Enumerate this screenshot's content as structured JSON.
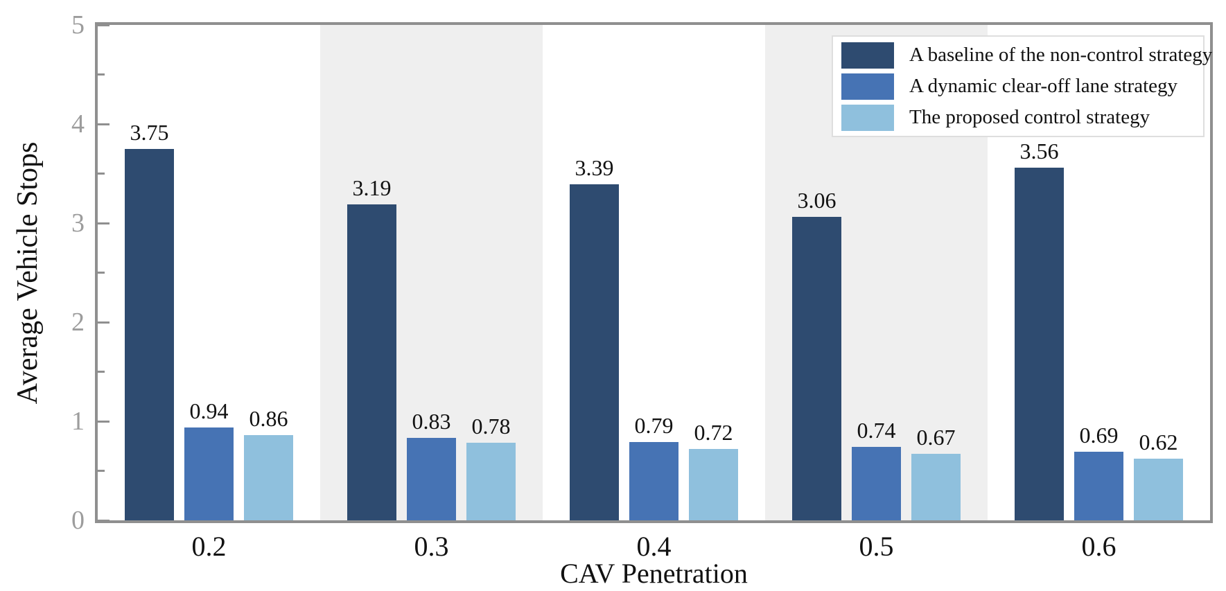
{
  "chart_data": {
    "type": "bar",
    "title": "",
    "xlabel": "CAV Penetration",
    "ylabel": "Average Vehicle Stops",
    "categories": [
      "0.2",
      "0.3",
      "0.4",
      "0.5",
      "0.6"
    ],
    "series": [
      {
        "name": "A baseline of the non-control strategy",
        "color": "#2e4b70",
        "values": [
          3.75,
          3.19,
          3.39,
          3.06,
          3.56
        ],
        "value_labels": [
          "3.75",
          "3.19",
          "3.39",
          "3.06",
          "3.56"
        ]
      },
      {
        "name": "A dynamic clear-off lane strategy",
        "color": "#4673b4",
        "values": [
          0.94,
          0.83,
          0.79,
          0.74,
          0.69
        ],
        "value_labels": [
          "0.94",
          "0.83",
          "0.79",
          "0.74",
          "0.69"
        ]
      },
      {
        "name": "The proposed control strategy",
        "color": "#8fc0dd",
        "values": [
          0.86,
          0.78,
          0.72,
          0.67,
          0.62
        ],
        "value_labels": [
          "0.86",
          "0.78",
          "0.72",
          "0.67",
          "0.62"
        ]
      }
    ],
    "ylim": [
      0,
      5
    ],
    "yticks": [
      0,
      1,
      2,
      3,
      4,
      5
    ],
    "ytick_labels": [
      "0",
      "1",
      "2",
      "3",
      "4",
      "5"
    ],
    "minor_yticks": [
      0.5,
      1.5,
      2.5,
      3.5,
      4.5
    ],
    "banded_category_indices": [
      1,
      3
    ],
    "band_color": "#efefef",
    "axis_color": "#8f8f8f",
    "ytick_label_color": "#9c9c9c",
    "xtick_label_color": "#111111",
    "legend_position": "top-right",
    "grid": false,
    "value_labels_shown": true
  }
}
